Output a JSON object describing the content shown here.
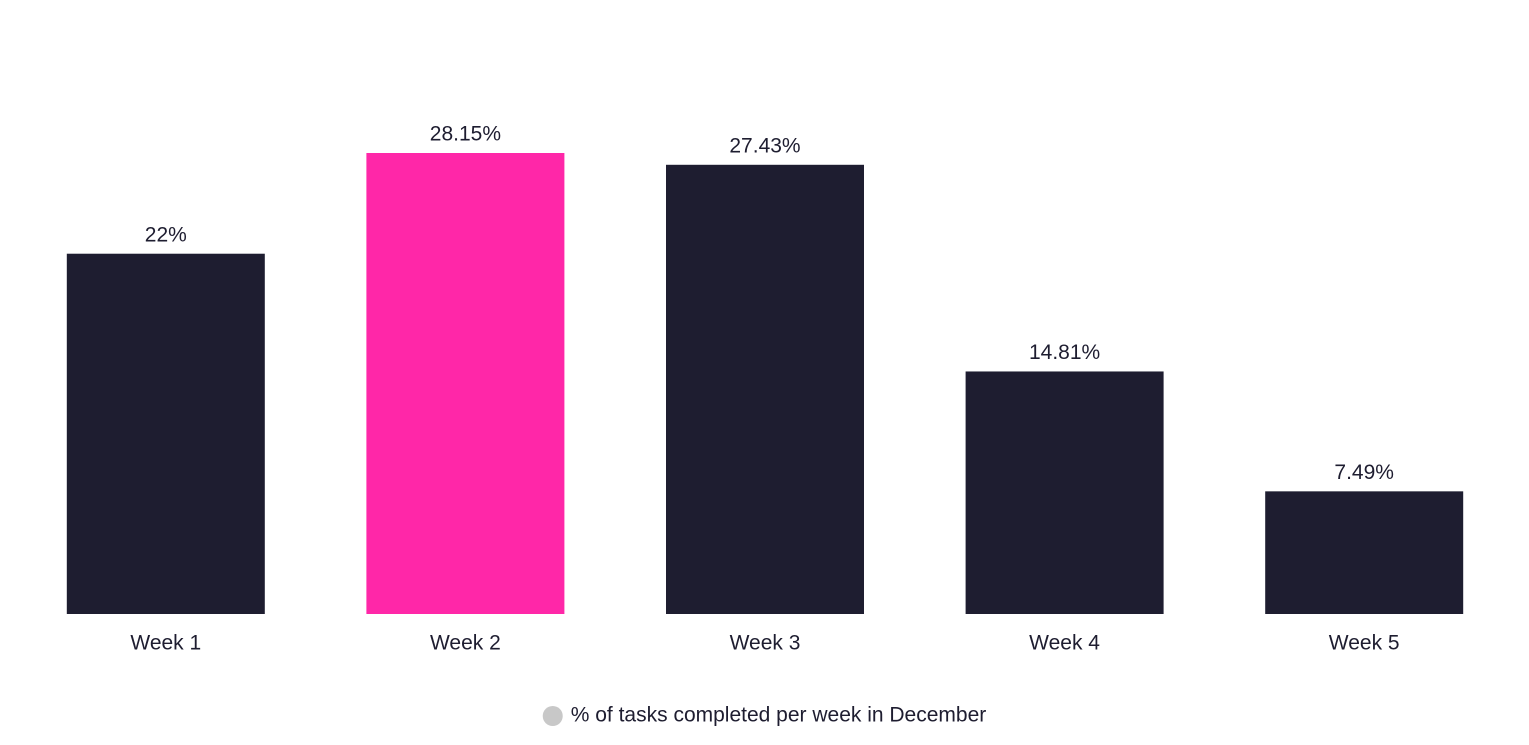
{
  "chart_data": {
    "type": "bar",
    "categories": [
      "Week 1",
      "Week 2",
      "Week 3",
      "Week 4",
      "Week 5"
    ],
    "series": [
      {
        "name": "% of tasks completed per week in December",
        "color": "#c8c8c8",
        "values": [
          22,
          28.15,
          27.43,
          14.81,
          7.49
        ],
        "value_labels": [
          "22%",
          "28.15%",
          "27.43%",
          "14.81%",
          "7.49%"
        ],
        "bar_colors": [
          "#1e1d30",
          "#ff27a8",
          "#1e1d30",
          "#1e1d30",
          "#1e1d30"
        ]
      }
    ],
    "legend": "bottom"
  }
}
